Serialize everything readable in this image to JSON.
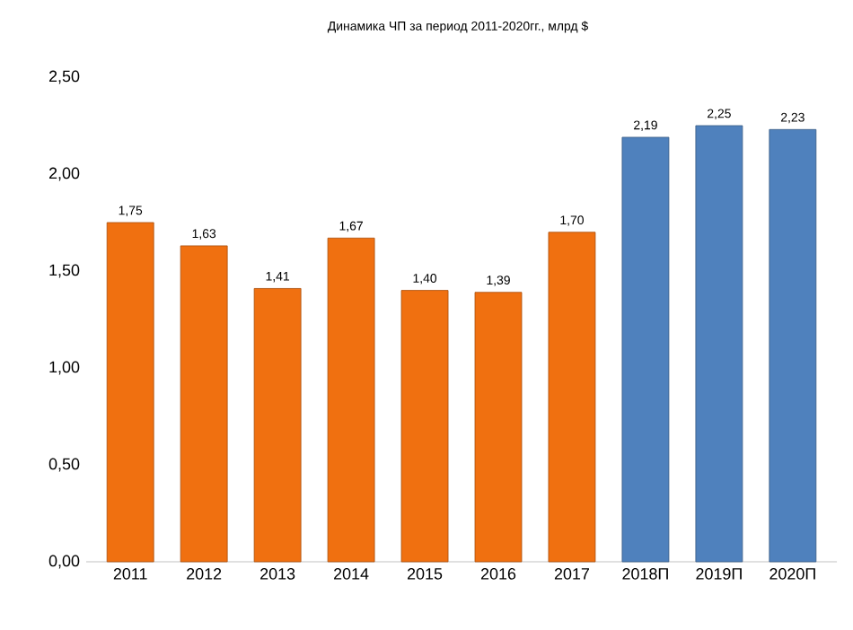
{
  "chart_data": {
    "type": "bar",
    "title": "Динамика ЧП за период 2011-2020гг., млрд $",
    "categories": [
      "2011",
      "2012",
      "2013",
      "2014",
      "2015",
      "2016",
      "2017",
      "2018П",
      "2019П",
      "2020П"
    ],
    "values": [
      1.75,
      1.63,
      1.41,
      1.67,
      1.4,
      1.39,
      1.7,
      2.19,
      2.25,
      2.23
    ],
    "colors": [
      "#f07010",
      "#f07010",
      "#f07010",
      "#f07010",
      "#f07010",
      "#f07010",
      "#f07010",
      "#4f81bd",
      "#4f81bd",
      "#4f81bd"
    ],
    "value_labels": [
      "1,75",
      "1,63",
      "1,41",
      "1,67",
      "1,40",
      "1,39",
      "1,70",
      "2,19",
      "2,25",
      "2,23"
    ],
    "ylim": [
      0,
      2.5
    ],
    "yticks": [
      {
        "value": 0,
        "label": "0,00"
      },
      {
        "value": 0.5,
        "label": "0,50"
      },
      {
        "value": 1,
        "label": "1,00"
      },
      {
        "value": 1.5,
        "label": "1,50"
      },
      {
        "value": 2,
        "label": "2,00"
      },
      {
        "value": 2.5,
        "label": "2,50"
      }
    ]
  }
}
